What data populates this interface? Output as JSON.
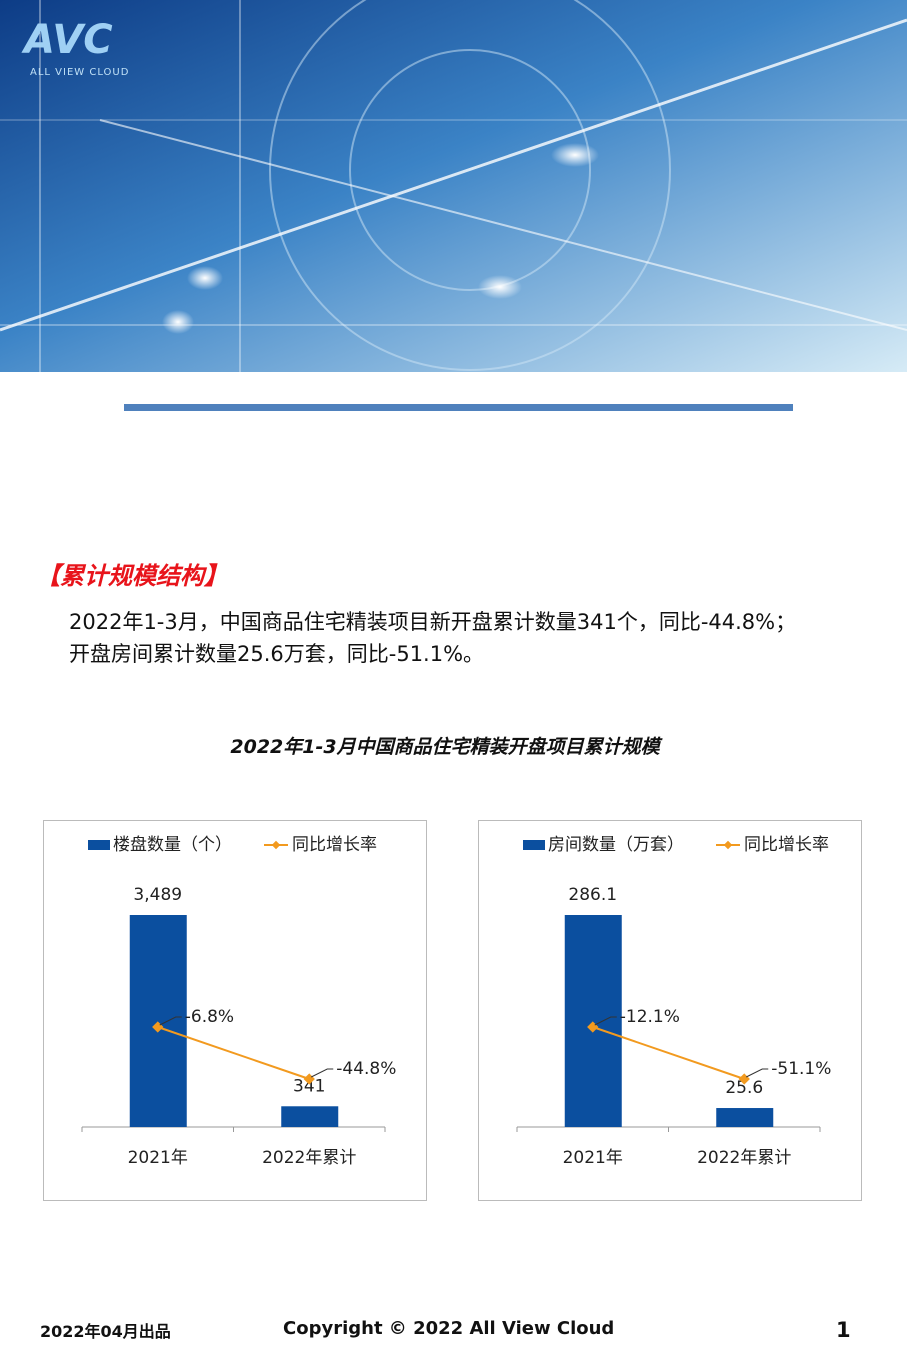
{
  "header": {
    "logo": "AVC",
    "logo_subtitle": "ALL VIEW CLOUD"
  },
  "section_title": "【累计规模结构】",
  "paragraph": [
    "2022年1-3月，中国商品住宅精装项目新开盘累计数量341个，同比-44.8%；",
    "开盘房间累计数量25.6万套，同比-51.1%。"
  ],
  "chart_title": "2022年1-3月中国商品住宅精装开盘项目累计规模",
  "chart_data": [
    {
      "type": "bar",
      "categories": [
        "2021年",
        "2022年累计"
      ],
      "legend": "top",
      "series": [
        {
          "name": "楼盘数量（个）",
          "type": "bar",
          "color": "#0b4f9f",
          "values": [
            3489,
            341
          ],
          "value_labels": [
            "3,489",
            "341"
          ]
        },
        {
          "name": "同比增长率",
          "type": "line",
          "axis": "y2",
          "color": "#f29a1f",
          "values": [
            -6.8,
            -44.8
          ],
          "value_labels": [
            "-6.8%",
            "-44.8%"
          ]
        }
      ]
    },
    {
      "type": "bar",
      "categories": [
        "2021年",
        "2022年累计"
      ],
      "legend": "top",
      "series": [
        {
          "name": "房间数量（万套）",
          "type": "bar",
          "color": "#0b4f9f",
          "values": [
            286.1,
            25.6
          ],
          "value_labels": [
            "286.1",
            "25.6"
          ]
        },
        {
          "name": "同比增长率",
          "type": "line",
          "axis": "y2",
          "color": "#f29a1f",
          "values": [
            -12.1,
            -51.1
          ],
          "value_labels": [
            "-12.1%",
            "-51.1%"
          ]
        }
      ]
    }
  ],
  "footer": {
    "date": "2022年04月出品",
    "copyright": "Copyright © 2022  All View Cloud",
    "page": 1
  }
}
